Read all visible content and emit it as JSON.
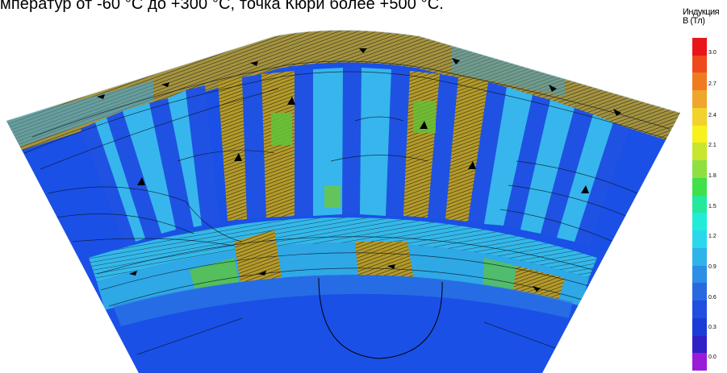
{
  "caption": "мператур от -60 °С до +300 °С, точка Кюри более +500 °С.",
  "legend": {
    "title_line1": "Индукция",
    "title_line2": "B (Тл)",
    "ticks": [
      "3.0",
      "2.7",
      "2.4",
      "2.1",
      "1.8",
      "1.5",
      "1.2",
      "0.9",
      "0.6",
      "0.3",
      "0.0"
    ],
    "colors_top_to_bottom": [
      "#e8161b",
      "#ee4a1c",
      "#f07a20",
      "#f0a62a",
      "#f2d22c",
      "#f7f21a",
      "#c8e630",
      "#8ee040",
      "#3fe04a",
      "#24e89a",
      "#22ecd8",
      "#2ad8ee",
      "#2fb4ea",
      "#2c8ee4",
      "#2869e2",
      "#1f4fe0",
      "#1a3cd8",
      "#3020c8",
      "#9a1cd8"
    ]
  },
  "colors": {
    "stator_steel": "#1a50e6",
    "low_field": "#2c80e8",
    "mid_field": "#36b6ec",
    "tooth_flux": "#8c9a2c",
    "sat_flux": "#c8a830",
    "green_zone": "#4ec63a"
  }
}
